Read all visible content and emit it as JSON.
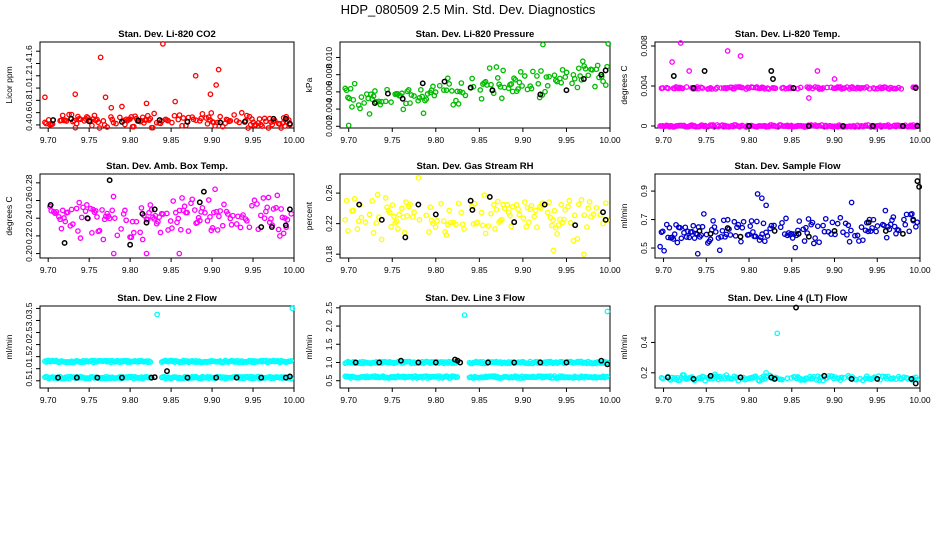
{
  "title": "HDP_080509  2.5 Min. Std. Dev. Diagnostics",
  "colors": {
    "black": "#000000"
  },
  "chart_data": [
    {
      "type": "scatter",
      "title": "Stan. Dev. Li-820 CO2",
      "ylabel": "Licor ppm",
      "color": "#ff0000",
      "xlim": [
        9.69,
        10.0
      ],
      "ylim": [
        0.35,
        1.75
      ],
      "xticks": [
        9.7,
        9.75,
        9.8,
        9.85,
        9.9,
        9.95,
        10.0
      ],
      "yticks": [
        0.4,
        0.6,
        0.8,
        1.0,
        1.2,
        1.4,
        1.6
      ],
      "highlights": [
        [
          9.706,
          0.48
        ],
        [
          9.728,
          0.5
        ],
        [
          9.75,
          0.46
        ],
        [
          9.79,
          0.45
        ],
        [
          9.81,
          0.47
        ],
        [
          9.836,
          0.48
        ],
        [
          9.87,
          0.45
        ],
        [
          9.91,
          0.44
        ],
        [
          9.94,
          0.45
        ],
        [
          9.975,
          0.5
        ],
        [
          9.99,
          0.5
        ],
        [
          9.995,
          0.42
        ]
      ],
      "outliers": [
        [
          9.696,
          0.85
        ],
        [
          9.733,
          0.9
        ],
        [
          9.764,
          1.5
        ],
        [
          9.77,
          0.85
        ],
        [
          9.777,
          0.68
        ],
        [
          9.84,
          1.72
        ],
        [
          9.855,
          0.78
        ],
        [
          9.88,
          1.2
        ],
        [
          9.898,
          0.9
        ],
        [
          9.905,
          1.05
        ],
        [
          9.908,
          1.3
        ],
        [
          9.82,
          0.75
        ],
        [
          9.79,
          0.7
        ]
      ],
      "base": [
        0.47,
        0.08
      ],
      "nseed": 1
    },
    {
      "type": "scatter",
      "title": "Stan. Dev. Li-820 Pressure",
      "ylabel": "kPa",
      "color": "#00bb00",
      "xlim": [
        9.69,
        10.0
      ],
      "ylim": [
        0.0018,
        0.0118
      ],
      "xticks": [
        9.7,
        9.75,
        9.8,
        9.85,
        9.9,
        9.95,
        10.0
      ],
      "yticks": [
        0.002,
        0.004,
        0.006,
        0.008,
        0.01
      ],
      "yfmt": 3,
      "highlights": [
        [
          9.73,
          0.0047
        ],
        [
          9.745,
          0.0058
        ],
        [
          9.762,
          0.0052
        ],
        [
          9.785,
          0.007
        ],
        [
          9.81,
          0.0072
        ],
        [
          9.84,
          0.0065
        ],
        [
          9.865,
          0.0062
        ],
        [
          9.92,
          0.0057
        ],
        [
          9.95,
          0.0062
        ],
        [
          9.97,
          0.0075
        ],
        [
          9.99,
          0.008
        ],
        [
          9.995,
          0.0085
        ]
      ],
      "outliers": [
        [
          9.923,
          0.0115
        ],
        [
          9.998,
          0.0116
        ],
        [
          9.7,
          0.0021
        ]
      ],
      "base": [
        0.0045,
        0.0013
      ],
      "trend": 0.0038,
      "nseed": 2
    },
    {
      "type": "scatter",
      "title": "Stan. Dev. Li-820 Temp.",
      "ylabel": "degrees C",
      "color": "#ff00ff",
      "xlim": [
        9.69,
        10.0
      ],
      "ylim": [
        -0.0002,
        0.0084
      ],
      "xticks": [
        9.7,
        9.75,
        9.8,
        9.85,
        9.9,
        9.95,
        10.0
      ],
      "yticks": [
        0,
        0.004,
        0.008
      ],
      "yfmt": 3,
      "highlights": [
        [
          9.712,
          0.005
        ],
        [
          9.735,
          0.0038
        ],
        [
          9.748,
          0.0055
        ],
        [
          9.8,
          0.0
        ],
        [
          9.826,
          0.0055
        ],
        [
          9.828,
          0.0047
        ],
        [
          9.852,
          0.0038
        ],
        [
          9.87,
          0.0
        ],
        [
          9.91,
          0.0
        ],
        [
          9.945,
          0.0
        ],
        [
          9.98,
          0.0
        ],
        [
          9.995,
          0.0038
        ],
        [
          9.997,
          0.0
        ]
      ],
      "outliers": [
        [
          9.72,
          0.0083
        ],
        [
          9.71,
          0.0064
        ],
        [
          9.73,
          0.0055
        ],
        [
          9.775,
          0.0075
        ],
        [
          9.79,
          0.007
        ],
        [
          9.81,
          0.0038
        ],
        [
          9.88,
          0.0055
        ],
        [
          9.9,
          0.0047
        ],
        [
          9.87,
          0.0028
        ]
      ],
      "levels": [
        0.0,
        0.0038
      ],
      "nseed": 3
    },
    {
      "type": "scatter",
      "title": "Stan. Dev. Amb. Box Temp.",
      "ylabel": "degrees C",
      "color": "#ff00ff",
      "xlim": [
        9.69,
        10.0
      ],
      "ylim": [
        0.195,
        0.29
      ],
      "xticks": [
        9.7,
        9.75,
        9.8,
        9.85,
        9.9,
        9.95,
        10.0
      ],
      "yticks": [
        0.2,
        0.22,
        0.24,
        0.26,
        0.28
      ],
      "yfmt": 2,
      "highlights": [
        [
          9.703,
          0.255
        ],
        [
          9.72,
          0.212
        ],
        [
          9.748,
          0.24
        ],
        [
          9.775,
          0.283
        ],
        [
          9.8,
          0.21
        ],
        [
          9.815,
          0.245
        ],
        [
          9.82,
          0.235
        ],
        [
          9.83,
          0.25
        ],
        [
          9.885,
          0.258
        ],
        [
          9.89,
          0.27
        ],
        [
          9.96,
          0.23
        ],
        [
          9.973,
          0.23
        ],
        [
          9.99,
          0.232
        ],
        [
          9.995,
          0.25
        ]
      ],
      "outliers": [
        [
          9.82,
          0.2
        ],
        [
          9.78,
          0.2
        ],
        [
          9.86,
          0.2
        ]
      ],
      "base": [
        0.242,
        0.016
      ],
      "nseed": 4
    },
    {
      "type": "scatter",
      "title": "Stan. Dev. Gas Stream RH",
      "ylabel": "percent",
      "color": "#ffff00",
      "xlim": [
        9.69,
        10.0
      ],
      "ylim": [
        0.175,
        0.285
      ],
      "xticks": [
        9.7,
        9.75,
        9.8,
        9.85,
        9.9,
        9.95,
        10.0
      ],
      "yticks": [
        0.18,
        0.22,
        0.26
      ],
      "yfmt": 2,
      "highlights": [
        [
          9.712,
          0.245
        ],
        [
          9.738,
          0.225
        ],
        [
          9.765,
          0.202
        ],
        [
          9.78,
          0.245
        ],
        [
          9.8,
          0.232
        ],
        [
          9.84,
          0.25
        ],
        [
          9.842,
          0.238
        ],
        [
          9.862,
          0.255
        ],
        [
          9.89,
          0.222
        ],
        [
          9.925,
          0.245
        ],
        [
          9.96,
          0.218
        ],
        [
          9.992,
          0.235
        ],
        [
          9.995,
          0.225
        ]
      ],
      "outliers": [
        [
          9.78,
          0.28
        ],
        [
          9.97,
          0.18
        ],
        [
          9.935,
          0.185
        ]
      ],
      "base": [
        0.23,
        0.018
      ],
      "nseed": 5
    },
    {
      "type": "scatter",
      "title": "Stan. Dev. Sample Flow",
      "ylabel": "ml/min",
      "color": "#0000cc",
      "xlim": [
        9.69,
        10.0
      ],
      "ylim": [
        0.43,
        1.02
      ],
      "xticks": [
        9.7,
        9.75,
        9.8,
        9.85,
        9.9,
        9.95,
        10.0
      ],
      "yticks": [
        0.5,
        0.7,
        0.9
      ],
      "yfmt": 1,
      "highlights": [
        [
          9.742,
          0.62
        ],
        [
          9.755,
          0.6
        ],
        [
          9.775,
          0.64
        ],
        [
          9.79,
          0.58
        ],
        [
          9.83,
          0.62
        ],
        [
          9.858,
          0.6
        ],
        [
          9.87,
          0.58
        ],
        [
          9.9,
          0.62
        ],
        [
          9.94,
          0.68
        ],
        [
          9.96,
          0.62
        ],
        [
          9.98,
          0.6
        ],
        [
          9.992,
          0.7
        ],
        [
          9.997,
          0.97
        ],
        [
          9.999,
          0.93
        ]
      ],
      "outliers": [
        [
          9.81,
          0.88
        ],
        [
          9.815,
          0.85
        ],
        [
          9.74,
          0.46
        ],
        [
          9.92,
          0.82
        ],
        [
          9.82,
          0.8
        ]
      ],
      "base": [
        0.6,
        0.07
      ],
      "trend": 0.05,
      "nseed": 6
    },
    {
      "type": "scatter",
      "title": "Stan. Dev. Line 2 Flow",
      "ylabel": "ml/min",
      "color": "#00ffff",
      "xlim": [
        9.69,
        10.0
      ],
      "ylim": [
        0.2,
        3.6
      ],
      "xticks": [
        9.7,
        9.75,
        9.8,
        9.85,
        9.9,
        9.95,
        10.0
      ],
      "yticks": [
        0.5,
        1.0,
        1.5,
        2.0,
        2.5,
        3.0,
        3.5
      ],
      "yfmt": 1,
      "highlights": [
        [
          9.712,
          0.63
        ],
        [
          9.735,
          0.63
        ],
        [
          9.76,
          0.63
        ],
        [
          9.79,
          0.63
        ],
        [
          9.826,
          0.63
        ],
        [
          9.83,
          0.65
        ],
        [
          9.845,
          0.9
        ],
        [
          9.87,
          0.63
        ],
        [
          9.905,
          0.63
        ],
        [
          9.93,
          0.63
        ],
        [
          9.96,
          0.63
        ],
        [
          9.99,
          0.63
        ],
        [
          9.995,
          0.68
        ]
      ],
      "outliers": [
        [
          9.833,
          3.25
        ],
        [
          9.998,
          3.5
        ]
      ],
      "levels": [
        0.63,
        1.3
      ],
      "gap": [
        9.826,
        9.838
      ],
      "nseed": 7
    },
    {
      "type": "scatter",
      "title": "Stan. Dev. Line 3 Flow",
      "ylabel": "ml/min",
      "color": "#00ffff",
      "xlim": [
        9.69,
        10.0
      ],
      "ylim": [
        0.3,
        2.55
      ],
      "xticks": [
        9.7,
        9.75,
        9.8,
        9.85,
        9.9,
        9.95,
        10.0
      ],
      "yticks": [
        0.5,
        1.0,
        1.5,
        2.0,
        2.5
      ],
      "yfmt": 1,
      "highlights": [
        [
          9.708,
          1.0
        ],
        [
          9.735,
          1.0
        ],
        [
          9.76,
          1.05
        ],
        [
          9.78,
          1.0
        ],
        [
          9.8,
          1.0
        ],
        [
          9.822,
          1.08
        ],
        [
          9.825,
          1.05
        ],
        [
          9.828,
          1.0
        ],
        [
          9.86,
          1.0
        ],
        [
          9.89,
          1.0
        ],
        [
          9.92,
          1.0
        ],
        [
          9.95,
          1.0
        ],
        [
          9.99,
          1.05
        ],
        [
          9.997,
          0.95
        ]
      ],
      "outliers": [
        [
          9.833,
          2.3
        ],
        [
          9.997,
          2.4
        ]
      ],
      "levels": [
        0.6,
        1.0
      ],
      "gap": [
        9.826,
        9.838
      ],
      "nseed": 8
    },
    {
      "type": "scatter",
      "title": "Stan. Dev. Line 4 (LT) Flow",
      "ylabel": "ml/min",
      "color": "#00ffff",
      "xlim": [
        9.69,
        10.0
      ],
      "ylim": [
        0.1,
        0.64
      ],
      "xticks": [
        9.7,
        9.75,
        9.8,
        9.85,
        9.9,
        9.95,
        10.0
      ],
      "yticks": [
        0.2,
        0.4
      ],
      "yfmt": 1,
      "highlights": [
        [
          9.705,
          0.17
        ],
        [
          9.735,
          0.16
        ],
        [
          9.755,
          0.18
        ],
        [
          9.79,
          0.17
        ],
        [
          9.826,
          0.17
        ],
        [
          9.83,
          0.16
        ],
        [
          9.855,
          0.63
        ],
        [
          9.888,
          0.18
        ],
        [
          9.92,
          0.16
        ],
        [
          9.95,
          0.16
        ],
        [
          9.99,
          0.16
        ],
        [
          9.995,
          0.13
        ]
      ],
      "outliers": [
        [
          9.833,
          0.46
        ],
        [
          9.82,
          0.2
        ],
        [
          9.76,
          0.19
        ]
      ],
      "base": [
        0.165,
        0.012
      ],
      "nseed": 9
    }
  ]
}
